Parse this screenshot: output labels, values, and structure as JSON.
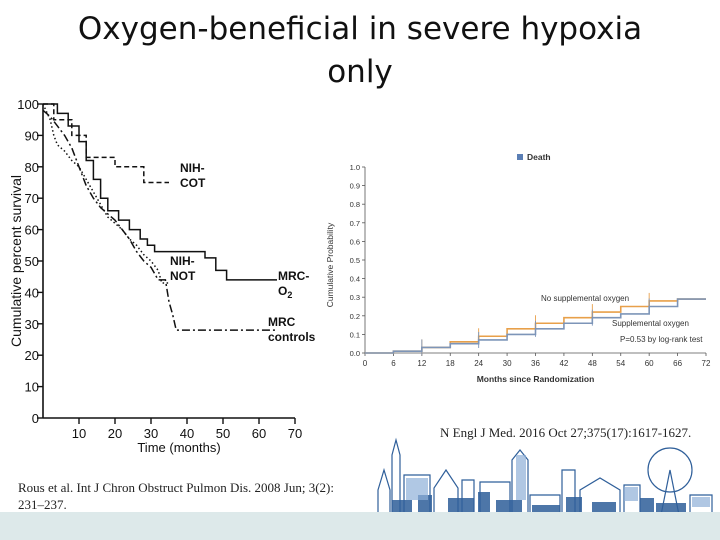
{
  "slide": {
    "title_line1": "Oxygen-beneficial in severe hypoxia",
    "title_line2": "only",
    "citation_left": "Rous et al. Int J Chron Obstruct Pulmon Dis. 2008 Jun; 3(2): 231–237.",
    "citation_right": "N Engl J Med. 2016 Oct 27;375(17):1617-1627."
  },
  "colors": {
    "orange": "#e8a04a",
    "blue": "#7d95b8",
    "footer": "#dde9ea",
    "skyline": "#2f5f9a"
  },
  "chart_data": [
    {
      "type": "line",
      "title": "",
      "xlabel": "Time (months)",
      "ylabel": "Cumulative percent survival",
      "xlim": [
        0,
        70
      ],
      "ylim": [
        0,
        100
      ],
      "xticks": [
        "10",
        "20",
        "30",
        "40",
        "50",
        "60",
        "70"
      ],
      "yticks": [
        "0",
        "10",
        "20",
        "30",
        "40",
        "50",
        "60",
        "70",
        "80",
        "90",
        "100"
      ],
      "series": [
        {
          "name": "NIH-COT",
          "label_line1": "NIH-",
          "label_line2": "COT",
          "style": "dashed",
          "x": [
            0,
            3,
            3,
            8,
            8,
            12,
            12,
            20,
            20,
            28,
            28,
            35,
            35
          ],
          "y": [
            100,
            100,
            95,
            95,
            90,
            90,
            83,
            83,
            80,
            80,
            75,
            75,
            75
          ]
        },
        {
          "name": "NIH-NOT",
          "label_line1": "NIH-",
          "label_line2": "NOT",
          "style": "dotted",
          "x": [
            0,
            2,
            3,
            4,
            6,
            8,
            10,
            12,
            14,
            16,
            18,
            20,
            22,
            24,
            26,
            28,
            30,
            32,
            33,
            35
          ],
          "y": [
            100,
            95,
            90,
            87,
            85,
            82,
            80,
            76,
            72,
            68,
            64,
            62,
            60,
            57,
            55,
            52,
            50,
            47,
            43,
            43
          ]
        },
        {
          "name": "MRC-O2",
          "label_line1": "MRC-",
          "label_line2": "O",
          "label_sub": "2",
          "style": "solid",
          "x": [
            0,
            4,
            4,
            7,
            7,
            10,
            10,
            12,
            12,
            14,
            14,
            16,
            16,
            18,
            18,
            21,
            21,
            24,
            24,
            27,
            27,
            29,
            29,
            31,
            31,
            33,
            33,
            45,
            45,
            48,
            48,
            51,
            51,
            60,
            60,
            65
          ],
          "y": [
            100,
            100,
            97,
            97,
            93,
            93,
            88,
            88,
            82,
            82,
            76,
            76,
            70,
            70,
            66,
            66,
            63,
            63,
            60,
            60,
            57,
            57,
            55,
            55,
            53,
            53,
            53,
            53,
            51,
            51,
            47,
            47,
            44,
            44,
            44,
            44
          ]
        },
        {
          "name": "MRC controls",
          "label_line1": "MRC",
          "label_line2": "controls",
          "style": "dashdot",
          "x": [
            0,
            2,
            4,
            6,
            8,
            10,
            12,
            14,
            16,
            18,
            20,
            22,
            24,
            26,
            28,
            30,
            32,
            34,
            35,
            36,
            37,
            38,
            40,
            65
          ],
          "y": [
            98,
            96,
            93,
            90,
            86,
            80,
            74,
            70,
            67,
            65,
            63,
            60,
            57,
            53,
            50,
            48,
            44,
            44,
            37,
            33,
            28,
            28,
            28,
            28
          ]
        }
      ]
    },
    {
      "type": "line",
      "title": "",
      "legend_label": "Death",
      "xlabel": "Months since Randomization",
      "ylabel": "Cumulative Probability",
      "xlim": [
        0,
        72
      ],
      "ylim": [
        0,
        1.0
      ],
      "xticks": [
        "0",
        "6",
        "12",
        "18",
        "24",
        "30",
        "36",
        "42",
        "48",
        "54",
        "60",
        "66",
        "72"
      ],
      "yticks": [
        "0.0",
        "0.1",
        "0.2",
        "0.3",
        "0.4",
        "0.5",
        "0.6",
        "0.7",
        "0.8",
        "0.9",
        "1.0"
      ],
      "annotation": "P=0.53 by log-rank test",
      "series": [
        {
          "name": "No supplemental oxygen",
          "color": "orange",
          "x": [
            0,
            6,
            12,
            18,
            24,
            30,
            36,
            42,
            48,
            54,
            60,
            66,
            72
          ],
          "y": [
            0.0,
            0.01,
            0.03,
            0.06,
            0.09,
            0.13,
            0.16,
            0.19,
            0.22,
            0.25,
            0.28,
            0.29,
            0.29
          ]
        },
        {
          "name": "Supplemental oxygen",
          "color": "blue",
          "x": [
            0,
            6,
            12,
            18,
            24,
            30,
            36,
            42,
            48,
            54,
            60,
            66,
            72
          ],
          "y": [
            0.0,
            0.01,
            0.03,
            0.05,
            0.07,
            0.1,
            0.13,
            0.16,
            0.19,
            0.21,
            0.25,
            0.29,
            0.29
          ]
        }
      ]
    }
  ]
}
